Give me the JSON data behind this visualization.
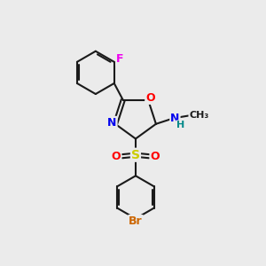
{
  "bg_color": "#ebebeb",
  "bond_color": "#1a1a1a",
  "bond_width": 1.5,
  "atom_colors": {
    "F": "#ee00ee",
    "O": "#ff0000",
    "N": "#0000ee",
    "S": "#cccc00",
    "Br": "#cc6600",
    "H": "#008888",
    "C": "#1a1a1a"
  },
  "font_size": 9,
  "fig_size": [
    3.0,
    3.0
  ],
  "dpi": 100
}
